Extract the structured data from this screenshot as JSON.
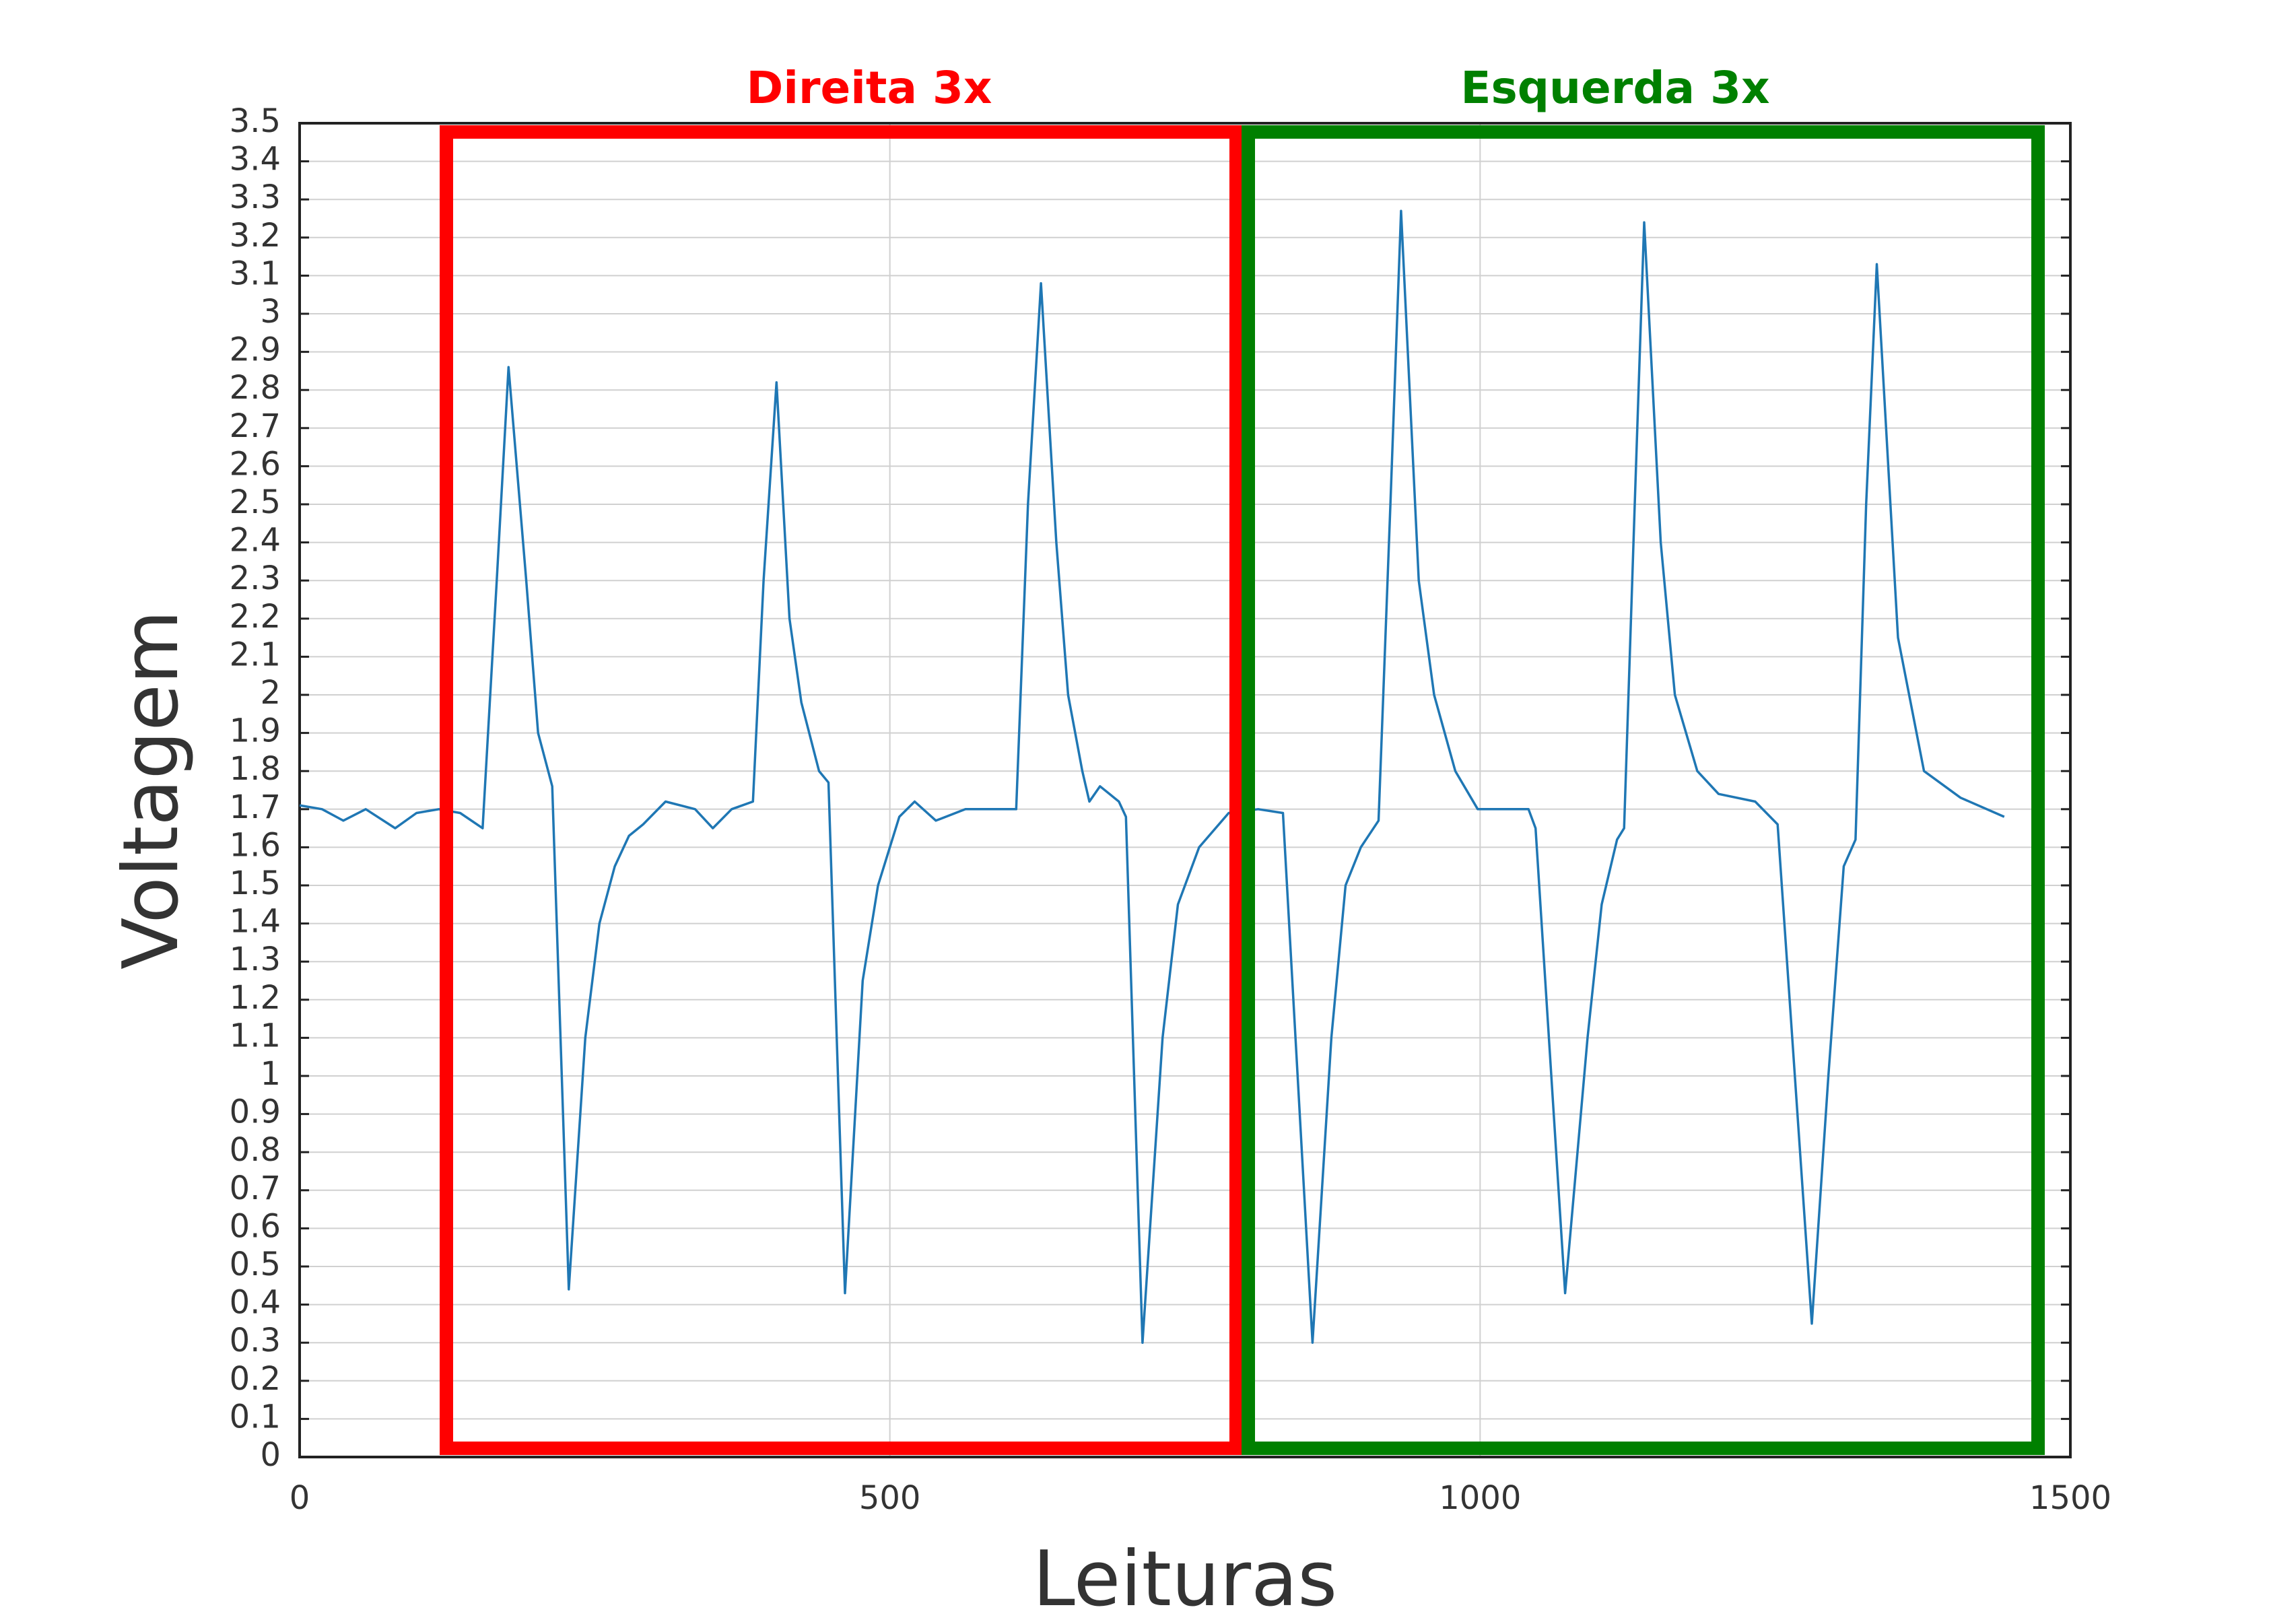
{
  "chart_data": {
    "type": "line",
    "xlabel": "Leituras",
    "ylabel": "Voltagem",
    "annotations": [
      {
        "text": "Direita 3x",
        "color": "#ff0000"
      },
      {
        "text": "Esquerda 3x",
        "color": "#008000"
      }
    ],
    "x": [
      0,
      19,
      37,
      56,
      81,
      99,
      118,
      136,
      155,
      167,
      177,
      192,
      202,
      214,
      228,
      242,
      254,
      267,
      279,
      291,
      310,
      335,
      350,
      366,
      384,
      393,
      404,
      415,
      425,
      440,
      448,
      462,
      477,
      490,
      508,
      521,
      539,
      564,
      607,
      617,
      628,
      641,
      651,
      663,
      669,
      678,
      694,
      700,
      714,
      731,
      744,
      762,
      787,
      812,
      833,
      858,
      874,
      886,
      899,
      914,
      924,
      933,
      948,
      961,
      979,
      998,
      1041,
      1047,
      1072,
      1091,
      1103,
      1116,
      1122,
      1131,
      1139,
      1153,
      1165,
      1184,
      1202,
      1233,
      1252,
      1281,
      1295,
      1308,
      1318,
      1327,
      1336,
      1354,
      1376,
      1407,
      1444
    ],
    "values": [
      1.71,
      1.7,
      1.67,
      1.7,
      1.65,
      1.69,
      1.7,
      1.69,
      1.65,
      2.3,
      2.86,
      2.3,
      1.9,
      1.76,
      0.44,
      1.1,
      1.4,
      1.55,
      1.63,
      1.66,
      1.72,
      1.7,
      1.65,
      1.7,
      1.72,
      2.3,
      2.82,
      2.2,
      1.98,
      1.8,
      1.77,
      0.43,
      1.25,
      1.5,
      1.68,
      1.72,
      1.67,
      1.7,
      1.7,
      2.5,
      3.08,
      2.4,
      2.0,
      1.8,
      1.72,
      1.76,
      1.72,
      1.68,
      0.3,
      1.1,
      1.45,
      1.6,
      1.69,
      1.7,
      1.69,
      0.3,
      1.1,
      1.5,
      1.6,
      1.67,
      2.5,
      3.27,
      2.3,
      2.0,
      1.8,
      1.7,
      1.7,
      1.65,
      0.43,
      1.1,
      1.45,
      1.62,
      1.65,
      2.5,
      3.24,
      2.4,
      2.0,
      1.8,
      1.74,
      1.72,
      1.66,
      0.35,
      1.0,
      1.55,
      1.62,
      2.5,
      3.13,
      2.15,
      1.8,
      1.73,
      1.68
    ],
    "color": "#1f77b4",
    "xlim": [
      0,
      1500
    ],
    "xticks": [
      0,
      500,
      1000,
      1500
    ],
    "ylim": [
      0,
      3.5
    ],
    "yticks": [
      0,
      0.1,
      0.2,
      0.3,
      0.4,
      0.5,
      0.6,
      0.7,
      0.8,
      0.9,
      1,
      1.1,
      1.2,
      1.3,
      1.4,
      1.5,
      1.6,
      1.7,
      1.8,
      1.9,
      2,
      2.1,
      2.2,
      2.3,
      2.4,
      2.5,
      2.6,
      2.7,
      2.8,
      2.9,
      3,
      3.1,
      3.2,
      3.3,
      3.4,
      3.5
    ],
    "grid": true
  }
}
